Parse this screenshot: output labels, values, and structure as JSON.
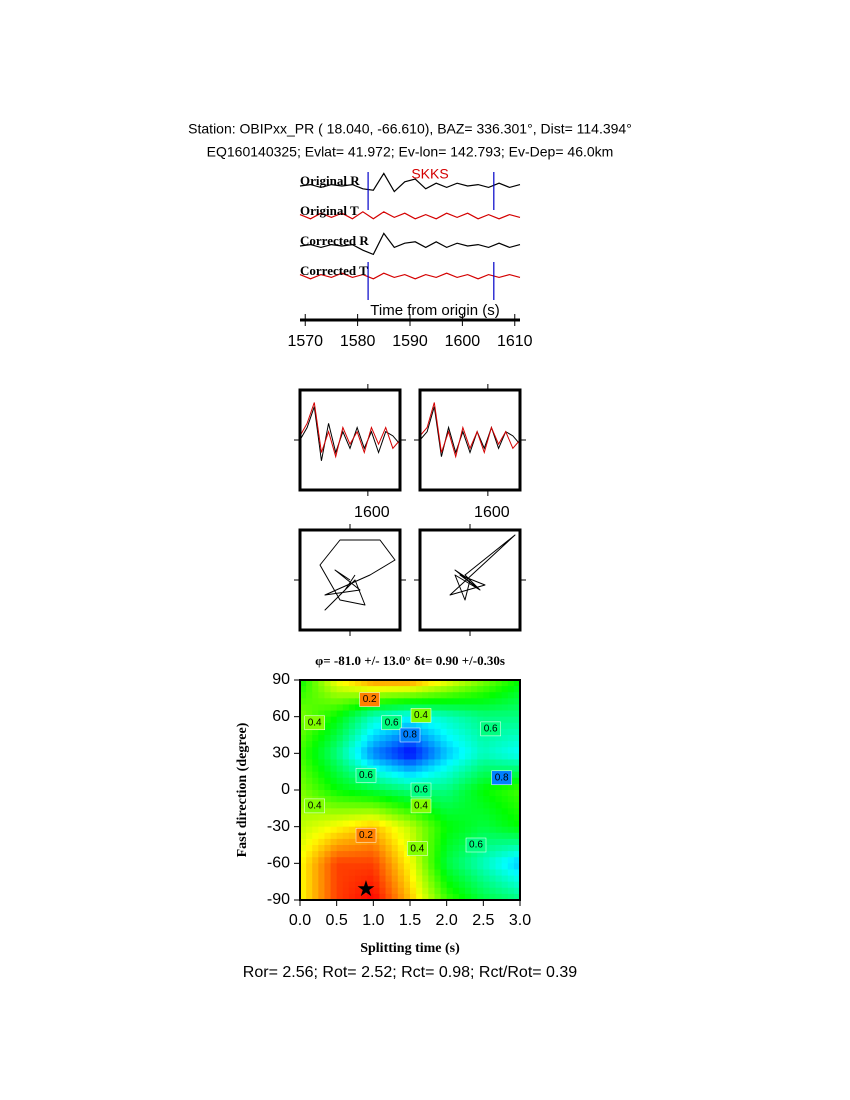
{
  "header": {
    "station": "Station: OBIPxx_PR (  18.040,  -66.610), BAZ=  336.301°, Dist=  114.394°",
    "event": "EQ160140325; Evlat=  41.972; Ev-lon= 142.793; Ev-Dep= 46.0km"
  },
  "footer": "Ror= 2.56; Rot= 2.52; Rct= 0.98; Rct/Rot= 0.39",
  "chart_data": [
    {
      "type": "seismogram",
      "xlabel": "Time from origin (s)",
      "phase_label": "SKKS",
      "x": [
        1569,
        1571,
        1573,
        1575,
        1577,
        1579,
        1581,
        1583,
        1585,
        1587,
        1589,
        1591,
        1593,
        1595,
        1597,
        1599,
        1601,
        1603,
        1605,
        1607,
        1609,
        1611
      ],
      "xlim": [
        1569,
        1611
      ],
      "xticks": [
        1570,
        1580,
        1590,
        1600,
        1610
      ],
      "ylim": [
        -1,
        1
      ],
      "markers": [
        1582,
        1606
      ],
      "series": [
        {
          "name": "Original R",
          "color": "#000000",
          "values": [
            0,
            0.1,
            -0.1,
            0.1,
            0,
            0.1,
            -0.2,
            -0.3,
            0.9,
            -0.4,
            0.3,
            0.5,
            -0.2,
            0.2,
            -0.1,
            0.2,
            0,
            0.1,
            -0.1,
            0.2,
            -0.1,
            0.1
          ]
        },
        {
          "name": "Original T",
          "color": "#d40000",
          "values": [
            0.1,
            -0.2,
            0.2,
            -0.1,
            0.2,
            -0.2,
            0.3,
            -0.2,
            0.3,
            -0.1,
            0.2,
            -0.2,
            0.1,
            -0.2,
            0.2,
            -0.1,
            0.2,
            -0.2,
            0.1,
            -0.2,
            0.1,
            -0.1
          ]
        },
        {
          "name": "Corrected R",
          "color": "#000000",
          "values": [
            0,
            0.1,
            -0.1,
            0.1,
            0,
            0.1,
            -0.3,
            -0.6,
            0.9,
            -0.1,
            0.2,
            0.3,
            -0.1,
            0.3,
            -0.1,
            0.2,
            0,
            0.1,
            -0.1,
            0.2,
            -0.1,
            0.1
          ]
        },
        {
          "name": "Corrected T",
          "color": "#d40000",
          "values": [
            0.1,
            -0.2,
            0.1,
            -0.1,
            0.2,
            -0.1,
            0.1,
            -0.2,
            0.2,
            -0.1,
            0.1,
            -0.2,
            0.1,
            -0.1,
            0.2,
            -0.1,
            0.1,
            -0.2,
            0.1,
            -0.1,
            0.1,
            -0.1
          ]
        }
      ]
    },
    {
      "type": "waveform",
      "x": [
        1581,
        1583,
        1585,
        1587,
        1589,
        1591,
        1593,
        1595,
        1597,
        1599,
        1601,
        1603,
        1605,
        1607,
        1609
      ],
      "xlim": [
        1581,
        1609
      ],
      "xticks": [
        1600
      ],
      "ylim": [
        -1.2,
        1.2
      ],
      "series": [
        {
          "color": "#000000",
          "values": [
            0,
            0.3,
            0.8,
            -0.5,
            0.4,
            -0.3,
            0.2,
            -0.2,
            0.3,
            -0.2,
            0.2,
            -0.3,
            0.2,
            0.1,
            -0.1
          ]
        },
        {
          "color": "#d40000",
          "values": [
            0.1,
            0.4,
            0.9,
            -0.3,
            0.2,
            -0.4,
            0.3,
            -0.1,
            0.2,
            -0.3,
            0.3,
            -0.1,
            0.3,
            -0.2,
            0
          ]
        }
      ]
    },
    {
      "type": "waveform",
      "x": [
        1581,
        1583,
        1585,
        1587,
        1589,
        1591,
        1593,
        1595,
        1597,
        1599,
        1601,
        1603,
        1605,
        1607,
        1609
      ],
      "xlim": [
        1581,
        1609
      ],
      "xticks": [
        1600
      ],
      "ylim": [
        -1.2,
        1.2
      ],
      "series": [
        {
          "color": "#000000",
          "values": [
            0,
            0.2,
            0.8,
            -0.4,
            0.3,
            -0.3,
            0.2,
            -0.3,
            0.2,
            -0.2,
            0.3,
            -0.2,
            0.2,
            0.1,
            -0.1
          ]
        },
        {
          "color": "#d40000",
          "values": [
            0.1,
            0.3,
            0.9,
            -0.3,
            0.2,
            -0.4,
            0.3,
            -0.2,
            0.2,
            -0.3,
            0.3,
            -0.1,
            0.2,
            -0.2,
            0
          ]
        }
      ]
    },
    {
      "type": "particle-motion",
      "xlim": [
        -1,
        1
      ],
      "ylim": [
        -1,
        1
      ],
      "color": "#000000",
      "x": [
        0,
        -0.3,
        0.2,
        -0.5,
        0.4,
        0.9,
        0.6,
        -0.2,
        -0.6,
        -0.2,
        0.3,
        0.1,
        -0.5,
        -0.1,
        0.1
      ],
      "y": [
        0,
        0.2,
        -0.2,
        -0.3,
        0.1,
        0.4,
        0.8,
        0.8,
        0.3,
        -0.4,
        -0.5,
        0.0,
        -0.6,
        -0.2,
        0.1
      ]
    },
    {
      "type": "particle-motion",
      "xlim": [
        -1,
        1
      ],
      "ylim": [
        -1,
        1
      ],
      "color": "#000000",
      "x": [
        0,
        -0.3,
        0.2,
        -0.2,
        0.3,
        -0.4,
        0.9,
        0.4,
        -0.1,
        0.2,
        -0.3,
        -0.1,
        0
      ],
      "y": [
        0,
        0.2,
        -0.2,
        0.1,
        -0.1,
        -0.3,
        0.9,
        0.5,
        0.1,
        -0.2,
        0.1,
        -0.4,
        0
      ]
    },
    {
      "type": "contour",
      "title": "φ= -81.0 +/- 13.0° δt= 0.90 +/-0.30s",
      "xlabel": "Splitting time (s)",
      "ylabel": "Fast direction (degree)",
      "x": [
        0,
        0.5,
        1,
        1.5,
        2,
        2.5,
        3
      ],
      "y": [
        90,
        60,
        30,
        0,
        -30,
        -60,
        -90
      ],
      "z": [
        [
          0.5,
          0.3,
          0.2,
          0.2,
          0.3,
          0.4,
          0.5
        ],
        [
          0.4,
          0.5,
          0.65,
          0.7,
          0.65,
          0.6,
          0.6
        ],
        [
          0.45,
          0.6,
          0.8,
          0.9,
          0.75,
          0.65,
          0.7
        ],
        [
          0.4,
          0.5,
          0.55,
          0.6,
          0.6,
          0.5,
          0.45
        ],
        [
          0.35,
          0.3,
          0.25,
          0.35,
          0.5,
          0.55,
          0.5
        ],
        [
          0.3,
          0.15,
          0.15,
          0.3,
          0.55,
          0.65,
          0.75
        ],
        [
          0.3,
          0.15,
          0.1,
          0.25,
          0.45,
          0.55,
          0.6
        ]
      ],
      "zlim": [
        0.1,
        0.9
      ],
      "xlim": [
        0,
        3
      ],
      "ylim": [
        -90,
        90
      ],
      "xticks": [
        {
          "value": 0,
          "label": "0.0"
        },
        0.5,
        {
          "value": 1,
          "label": "1.0"
        },
        1.5,
        {
          "value": 2,
          "label": "2.0"
        },
        2.5,
        {
          "value": 3,
          "label": "3.0"
        }
      ],
      "yticks": [
        90,
        60,
        30,
        0,
        -30,
        -60,
        -90
      ],
      "best": {
        "x": 0.9,
        "y": -81
      },
      "contour_labels": [
        {
          "value": 0.2,
          "x": 0.95,
          "y": 74
        },
        {
          "value": 0.4,
          "x": 1.65,
          "y": 61
        },
        {
          "value": 0.6,
          "x": 1.25,
          "y": 55
        },
        {
          "value": 0.8,
          "x": 1.5,
          "y": 45
        },
        {
          "value": 0.6,
          "x": 2.6,
          "y": 50
        },
        {
          "value": 0.4,
          "x": 0.2,
          "y": 55
        },
        {
          "value": 0.6,
          "x": 0.9,
          "y": 12
        },
        {
          "value": 0.6,
          "x": 1.65,
          "y": 0
        },
        {
          "value": 0.4,
          "x": 1.65,
          "y": -13
        },
        {
          "value": 0.4,
          "x": 0.2,
          "y": -13
        },
        {
          "value": 0.2,
          "x": 0.9,
          "y": -37
        },
        {
          "value": 0.4,
          "x": 1.6,
          "y": -48
        },
        {
          "value": 0.6,
          "x": 2.4,
          "y": -45
        },
        {
          "value": 0.8,
          "x": 2.75,
          "y": 10
        }
      ]
    }
  ]
}
